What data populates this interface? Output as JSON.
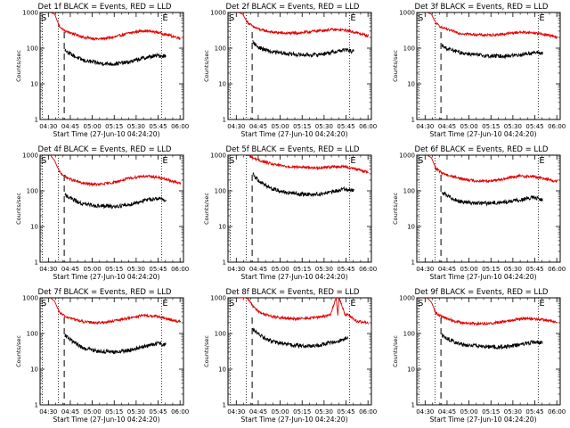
{
  "figure": {
    "title_template": "Det {n}f BLACK = Events, RED = LLD",
    "xlabel": "Start Time (27-Jun-10 04:24:20)",
    "ylabel": "Counts/sec",
    "x_tick_labels": [
      "04:30",
      "04:45",
      "05:00",
      "05:15",
      "05:30",
      "05:45",
      "06:00"
    ],
    "y_tick_labels": [
      "1",
      "10",
      "100",
      "1000"
    ],
    "markers": {
      "start": "S",
      "end": "E"
    },
    "colors": {
      "events": "#000000",
      "lld": "#e00000",
      "axes": "#000000"
    }
  },
  "chart_data": [
    {
      "type": "line",
      "detector": "1f",
      "title": "Det 1f BLACK = Events, RED = LLD",
      "x_unit": "minutes since 04:24:20",
      "xlim": [
        0,
        98
      ],
      "ylim": [
        1,
        1000
      ],
      "yscale": "log",
      "vlines_dotted": [
        1.5,
        12.5,
        83
      ],
      "vline_dashed": 16.5,
      "series": [
        {
          "name": "LLD",
          "color": "#e00000",
          "x": [
            7,
            10,
            13,
            17,
            22,
            30,
            40,
            50,
            60,
            70,
            80,
            88,
            96
          ],
          "values": [
            1000,
            900,
            420,
            300,
            260,
            200,
            180,
            200,
            260,
            310,
            280,
            230,
            190
          ]
        },
        {
          "name": "Events",
          "color": "#000000",
          "x": [
            17,
            20,
            25,
            30,
            40,
            50,
            60,
            70,
            80,
            86
          ],
          "values": [
            90,
            72,
            55,
            45,
            38,
            36,
            40,
            52,
            62,
            60
          ]
        }
      ]
    },
    {
      "type": "line",
      "detector": "2f",
      "title": "Det 2f BLACK = Events, RED = LLD",
      "x_unit": "minutes since 04:24:20",
      "xlim": [
        0,
        98
      ],
      "ylim": [
        1,
        1000
      ],
      "yscale": "log",
      "vlines_dotted": [
        1.5,
        12.5,
        83
      ],
      "vline_dashed": 16.5,
      "series": [
        {
          "name": "LLD",
          "color": "#e00000",
          "x": [
            7,
            10,
            13,
            17,
            22,
            30,
            40,
            50,
            60,
            70,
            80,
            88,
            96
          ],
          "values": [
            1000,
            900,
            550,
            400,
            330,
            280,
            260,
            270,
            300,
            330,
            320,
            270,
            220
          ]
        },
        {
          "name": "Events",
          "color": "#000000",
          "x": [
            17,
            20,
            25,
            30,
            40,
            50,
            60,
            70,
            80,
            86
          ],
          "values": [
            150,
            110,
            90,
            78,
            70,
            65,
            65,
            75,
            90,
            80
          ]
        }
      ]
    },
    {
      "type": "line",
      "detector": "3f",
      "title": "Det 3f BLACK = Events, RED = LLD",
      "x_unit": "minutes since 04:24:20",
      "xlim": [
        0,
        98
      ],
      "ylim": [
        1,
        1000
      ],
      "yscale": "log",
      "vlines_dotted": [
        1.5,
        12.5,
        83
      ],
      "vline_dashed": 16.5,
      "series": [
        {
          "name": "LLD",
          "color": "#e00000",
          "x": [
            7,
            10,
            13,
            17,
            22,
            30,
            40,
            50,
            60,
            70,
            80,
            88,
            96
          ],
          "values": [
            1000,
            900,
            500,
            380,
            320,
            260,
            240,
            230,
            250,
            280,
            270,
            240,
            200
          ]
        },
        {
          "name": "Events",
          "color": "#000000",
          "x": [
            17,
            20,
            25,
            30,
            40,
            50,
            60,
            70,
            80,
            86
          ],
          "values": [
            120,
            100,
            85,
            75,
            65,
            60,
            60,
            65,
            75,
            72
          ]
        }
      ]
    },
    {
      "type": "line",
      "detector": "4f",
      "title": "Det 4f BLACK = Events, RED = LLD",
      "x_unit": "minutes since 04:24:20",
      "xlim": [
        0,
        98
      ],
      "ylim": [
        1,
        1000
      ],
      "yscale": "log",
      "vlines_dotted": [
        1.5,
        12.5,
        83
      ],
      "vline_dashed": 16.5,
      "series": [
        {
          "name": "LLD",
          "color": "#e00000",
          "x": [
            7,
            10,
            13,
            17,
            22,
            30,
            40,
            50,
            60,
            70,
            80,
            88,
            96
          ],
          "values": [
            1000,
            700,
            350,
            250,
            200,
            160,
            150,
            170,
            220,
            260,
            240,
            200,
            160
          ]
        },
        {
          "name": "Events",
          "color": "#000000",
          "x": [
            17,
            20,
            25,
            30,
            40,
            50,
            60,
            70,
            80,
            86
          ],
          "values": [
            80,
            65,
            50,
            42,
            38,
            36,
            40,
            52,
            62,
            55
          ]
        }
      ]
    },
    {
      "type": "line",
      "detector": "5f",
      "title": "Det 5f BLACK = Events, RED = LLD",
      "x_unit": "minutes since 04:24:20",
      "xlim": [
        0,
        98
      ],
      "ylim": [
        1,
        1000
      ],
      "yscale": "log",
      "vlines_dotted": [
        1.5,
        12.5,
        83
      ],
      "vline_dashed": 16.5,
      "series": [
        {
          "name": "LLD",
          "color": "#e00000",
          "x": [
            7,
            10,
            13,
            17,
            22,
            30,
            40,
            50,
            60,
            70,
            80,
            88,
            96
          ],
          "values": [
            1000,
            1000,
            1000,
            850,
            700,
            560,
            480,
            460,
            440,
            470,
            480,
            400,
            330
          ]
        },
        {
          "name": "Events",
          "color": "#000000",
          "x": [
            17,
            20,
            25,
            30,
            40,
            50,
            60,
            70,
            80,
            86
          ],
          "values": [
            300,
            210,
            150,
            115,
            90,
            80,
            80,
            90,
            115,
            100
          ]
        }
      ]
    },
    {
      "type": "line",
      "detector": "6f",
      "title": "Det 6f BLACK = Events, RED = LLD",
      "x_unit": "minutes since 04:24:20",
      "xlim": [
        0,
        98
      ],
      "ylim": [
        1,
        1000
      ],
      "yscale": "log",
      "vlines_dotted": [
        1.5,
        12.5,
        83
      ],
      "vline_dashed": 16.5,
      "series": [
        {
          "name": "LLD",
          "color": "#e00000",
          "x": [
            7,
            10,
            13,
            17,
            22,
            30,
            40,
            50,
            60,
            70,
            80,
            88,
            96
          ],
          "values": [
            1000,
            850,
            420,
            320,
            270,
            220,
            190,
            190,
            220,
            260,
            250,
            220,
            180
          ]
        },
        {
          "name": "Events",
          "color": "#000000",
          "x": [
            17,
            20,
            25,
            30,
            40,
            50,
            60,
            70,
            80,
            86
          ],
          "values": [
            90,
            75,
            60,
            50,
            45,
            45,
            48,
            55,
            65,
            55
          ]
        }
      ]
    },
    {
      "type": "line",
      "detector": "7f",
      "title": "Det 7f BLACK = Events, RED = LLD",
      "x_unit": "minutes since 04:24:20",
      "xlim": [
        0,
        98
      ],
      "ylim": [
        1,
        1000
      ],
      "yscale": "log",
      "vlines_dotted": [
        1.5,
        12.5,
        83
      ],
      "vline_dashed": 16.5,
      "series": [
        {
          "name": "LLD",
          "color": "#e00000",
          "x": [
            7,
            10,
            13,
            17,
            22,
            30,
            40,
            50,
            60,
            70,
            80,
            88,
            96
          ],
          "values": [
            1000,
            800,
            400,
            300,
            260,
            210,
            200,
            220,
            270,
            320,
            300,
            250,
            210
          ]
        },
        {
          "name": "Events",
          "color": "#000000",
          "x": [
            17,
            20,
            25,
            30,
            40,
            50,
            60,
            70,
            80,
            86
          ],
          "values": [
            90,
            70,
            50,
            38,
            32,
            30,
            33,
            42,
            52,
            48
          ]
        }
      ]
    },
    {
      "type": "line",
      "detector": "8f",
      "title": "Det 8f BLACK = Events, RED = LLD",
      "x_unit": "minutes since 04:24:20",
      "xlim": [
        0,
        98
      ],
      "ylim": [
        1,
        1000
      ],
      "yscale": "log",
      "vlines_dotted": [
        1.5,
        12.5,
        83
      ],
      "vline_dashed": 16.5,
      "series": [
        {
          "name": "LLD",
          "color": "#e00000",
          "x": [
            7,
            10,
            13,
            17,
            22,
            30,
            40,
            50,
            60,
            70,
            74,
            75,
            76,
            80,
            82,
            84,
            86,
            88,
            96
          ],
          "values": [
            1000,
            1000,
            1000,
            600,
            380,
            300,
            260,
            260,
            280,
            330,
            1000,
            340,
            1000,
            340,
            350,
            300,
            250,
            220,
            200
          ]
        },
        {
          "name": "Events",
          "color": "#000000",
          "x": [
            17,
            20,
            25,
            30,
            40,
            50,
            60,
            70,
            80,
            82
          ],
          "values": [
            130,
            100,
            75,
            60,
            50,
            45,
            45,
            55,
            70,
            75
          ]
        }
      ]
    },
    {
      "type": "line",
      "detector": "9f",
      "title": "Det 9f BLACK = Events, RED = LLD",
      "x_unit": "minutes since 04:24:20",
      "xlim": [
        0,
        98
      ],
      "ylim": [
        1,
        1000
      ],
      "yscale": "log",
      "vlines_dotted": [
        1.5,
        12.5,
        83
      ],
      "vline_dashed": 16.5,
      "series": [
        {
          "name": "LLD",
          "color": "#e00000",
          "x": [
            7,
            10,
            13,
            17,
            22,
            30,
            40,
            50,
            60,
            70,
            80,
            88,
            96
          ],
          "values": [
            1000,
            750,
            380,
            300,
            250,
            200,
            190,
            190,
            220,
            260,
            260,
            240,
            200
          ]
        },
        {
          "name": "Events",
          "color": "#000000",
          "x": [
            17,
            20,
            25,
            30,
            40,
            50,
            60,
            70,
            80,
            86
          ],
          "values": [
            90,
            75,
            60,
            50,
            45,
            42,
            42,
            48,
            58,
            55
          ]
        }
      ]
    }
  ]
}
